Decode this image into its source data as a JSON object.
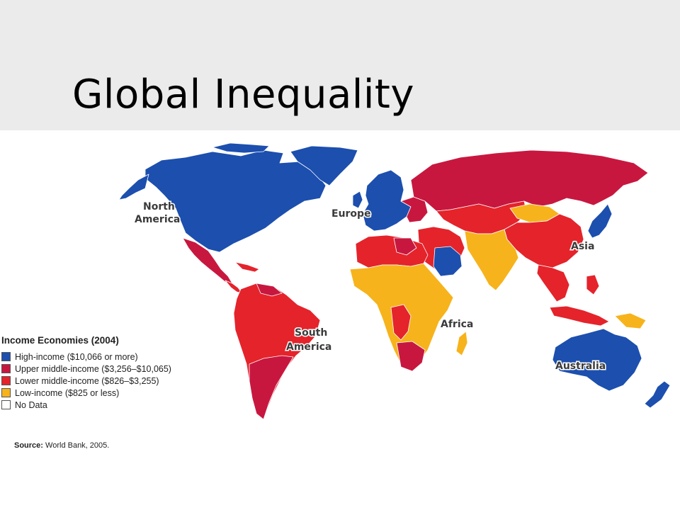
{
  "slide": {
    "title": "Global Inequality"
  },
  "map": {
    "colors": {
      "high": "#1c4fae",
      "upper_middle": "#c8173f",
      "lower_middle": "#e5232b",
      "low": "#f7b31b",
      "no_data": "#ffffff"
    },
    "region_labels": {
      "north_america_1": "North",
      "north_america_2": "America",
      "europe": "Europe",
      "asia": "Asia",
      "south_america_1": "South",
      "south_america_2": "America",
      "africa": "Africa",
      "australia": "Australia"
    }
  },
  "legend": {
    "title": "Income Economies (2004)",
    "items": [
      {
        "label": "High-income ($10,066 or more)",
        "color": "#1c4fae"
      },
      {
        "label": "Upper middle-income ($3,256–$10,065)",
        "color": "#c8173f"
      },
      {
        "label": "Lower middle-income ($826–$3,255)",
        "color": "#e5232b"
      },
      {
        "label": "Low-income ($825 or less)",
        "color": "#f7b31b"
      },
      {
        "label": "No Data",
        "color": "#ffffff"
      }
    ]
  },
  "source": {
    "label": "Source:",
    "text": "World Bank, 2005."
  }
}
